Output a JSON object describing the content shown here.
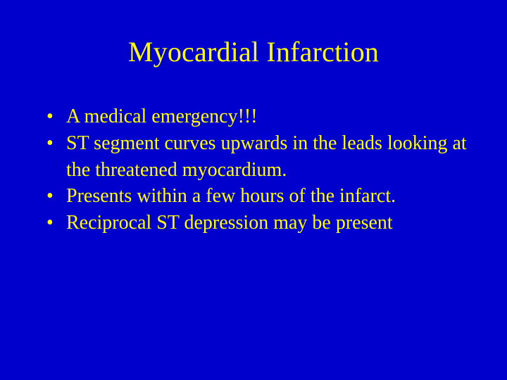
{
  "slide": {
    "background_color": "#0000cc",
    "text_color": "#ffff00",
    "title": "Myocardial Infarction",
    "title_fontsize": 40,
    "body_fontsize": 28,
    "font_family": "Times New Roman",
    "bullets": [
      "A medical emergency!!!",
      "ST segment curves upwards in the leads looking at the threatened myocardium.",
      "Presents within a few hours of the infarct.",
      "Reciprocal ST depression may be present"
    ]
  }
}
